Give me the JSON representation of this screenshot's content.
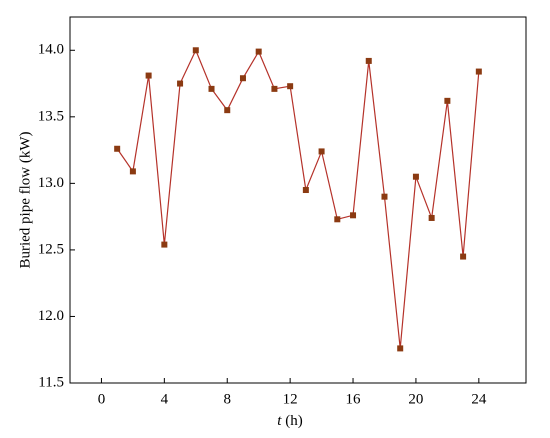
{
  "chart_data": {
    "type": "line",
    "x_label": {
      "variable": "t",
      "unit": "(h)"
    },
    "y_label": "Buried pipe flow (kW)",
    "x": [
      1,
      2,
      3,
      4,
      5,
      6,
      7,
      8,
      9,
      10,
      11,
      12,
      13,
      14,
      15,
      16,
      17,
      18,
      19,
      20,
      21,
      22,
      23,
      24
    ],
    "series": [
      {
        "line_color": "#b5322a",
        "marker_color": "#8b3a12",
        "values": [
          13.26,
          13.09,
          13.81,
          12.54,
          13.75,
          14.0,
          13.71,
          13.55,
          13.79,
          13.99,
          13.71,
          13.73,
          12.95,
          13.24,
          12.73,
          12.76,
          13.92,
          12.9,
          11.76,
          13.05,
          12.74,
          13.62,
          12.45,
          13.84
        ]
      }
    ],
    "xlim": [
      -2,
      27
    ],
    "ylim": [
      11.5,
      14.25
    ],
    "xticks": [
      0,
      4,
      8,
      12,
      16,
      20,
      24
    ],
    "yticks": [
      {
        "value": 11.5,
        "label": "11.5"
      },
      {
        "value": 12,
        "label": "12.0"
      },
      {
        "value": 12.5,
        "label": "12.5"
      },
      {
        "value": 13,
        "label": "13.0"
      },
      {
        "value": 13.5,
        "label": "13.5"
      },
      {
        "value": 14,
        "label": "14.0"
      }
    ]
  }
}
